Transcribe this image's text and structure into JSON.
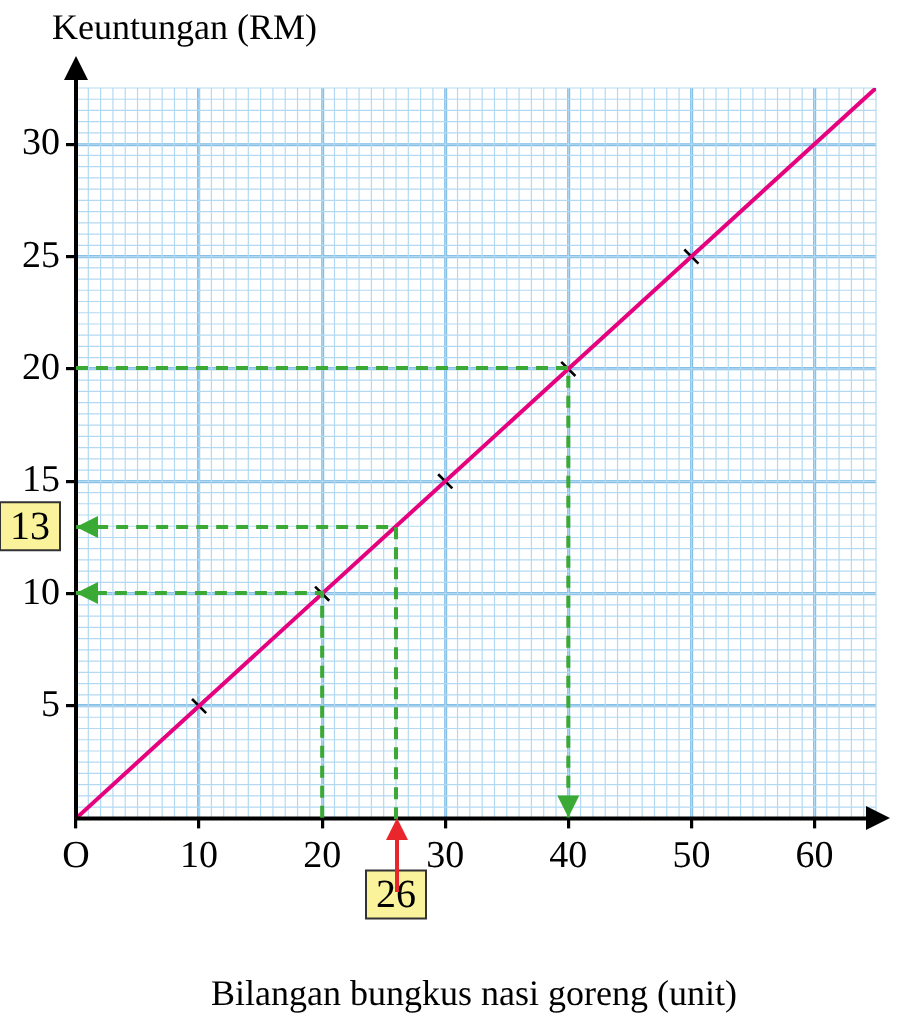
{
  "chart_data": {
    "type": "line",
    "ylabel": "Keuntungan (RM)",
    "xlabel": "Bilangan bungkus nasi goreng (unit)",
    "xlim": [
      0,
      65
    ],
    "ylim": [
      0,
      32.5
    ],
    "xticks": [
      {
        "value": 0,
        "label": "O"
      },
      10,
      20,
      30,
      40,
      50,
      60
    ],
    "yticks": [
      5,
      10,
      15,
      20,
      25,
      30
    ],
    "grid": true,
    "series": [
      {
        "color": "#e6007e",
        "x": [
          0,
          65
        ],
        "values": [
          0,
          32.5
        ]
      },
      {
        "type": "scatter",
        "marker": "cross",
        "color": "#000000",
        "x": [
          10,
          20,
          30,
          40,
          50
        ],
        "values": [
          5,
          10,
          15,
          20,
          25
        ]
      },
      {
        "line_style": "dashed",
        "color": "#3aaa35",
        "x": [
          0,
          40,
          40
        ],
        "values": [
          20,
          20,
          0
        ]
      },
      {
        "line_style": "dashed",
        "color": "#3aaa35",
        "x": [
          20,
          20,
          0
        ],
        "values": [
          0,
          10,
          10
        ]
      },
      {
        "line_style": "dashed",
        "color": "#3aaa35",
        "x": [
          26,
          26,
          0
        ],
        "values": [
          0,
          13,
          13
        ]
      }
    ],
    "annotations": [
      {
        "text": "13",
        "x": 0,
        "y": 13
      },
      {
        "text": "26",
        "x": 26,
        "y": 0
      }
    ]
  }
}
